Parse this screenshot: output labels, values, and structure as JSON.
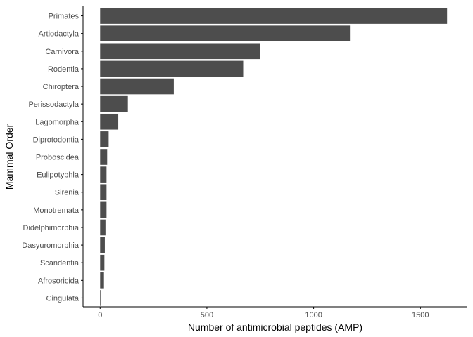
{
  "chart_data": {
    "type": "bar",
    "orientation": "horizontal",
    "title": "",
    "xlabel": "Number of antimicrobial peptides (AMP)",
    "ylabel": "Mammal Order",
    "categories": [
      "Primates",
      "Artiodactyla",
      "Carnivora",
      "Rodentia",
      "Chiroptera",
      "Perissodactyla",
      "Lagomorpha",
      "Diprotodontia",
      "Proboscidea",
      "Eulipotyphla",
      "Sirenia",
      "Monotremata",
      "Didelphimorphia",
      "Dasyuromorphia",
      "Scandentia",
      "Afrosoricida",
      "Cingulata"
    ],
    "values": [
      1625,
      1170,
      750,
      670,
      345,
      130,
      85,
      40,
      33,
      30,
      30,
      30,
      25,
      22,
      20,
      18,
      3
    ],
    "xlim": [
      -80,
      1720
    ],
    "xticks": [
      0,
      500,
      1000,
      1500
    ],
    "grid": false,
    "bar_color": "#4d4d4d",
    "axis_color": "#000000"
  }
}
